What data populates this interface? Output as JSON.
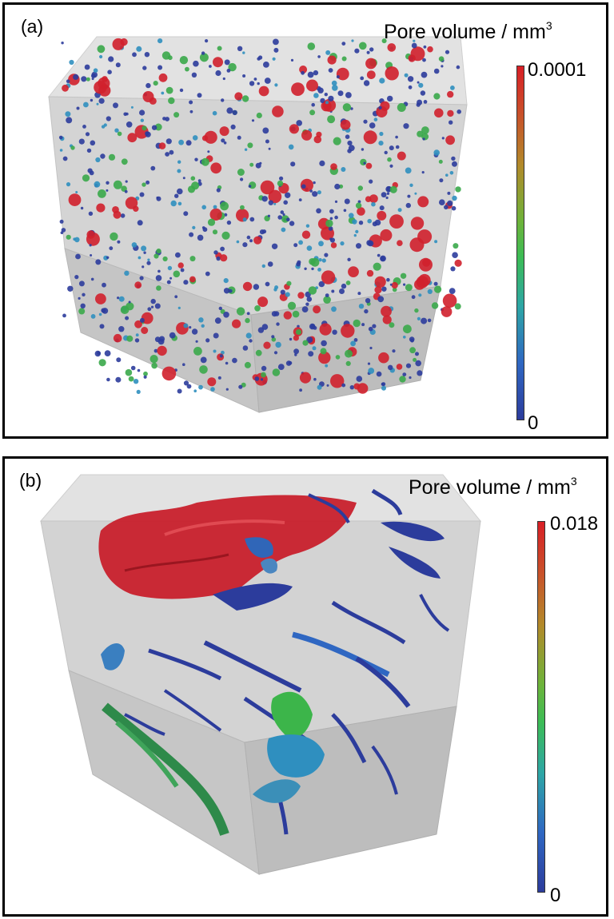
{
  "panel_a": {
    "label": "(a)",
    "legend_title": "Pore volume / mm",
    "legend_exp": "3",
    "max_label": "0.0001",
    "min_label": "0"
  },
  "panel_b": {
    "label": "(b)",
    "legend_title": "Pore volume / mm",
    "legend_exp": "3",
    "max_label": "0.018",
    "min_label": "0"
  },
  "colors": {
    "cube_light": "#dedede",
    "cube_mid": "#cacaca",
    "cube_dark": "#b9b9b9",
    "pore_red": "#d0202c",
    "pore_green": "#3aa84a",
    "pore_blue": "#2c3c9c",
    "pore_cyan": "#2f8fbf"
  }
}
